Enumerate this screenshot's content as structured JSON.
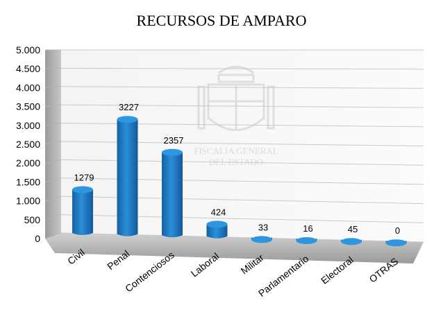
{
  "chart_data": {
    "type": "bar",
    "title": "RECURSOS DE AMPARO",
    "categories": [
      "Civil",
      "Penal",
      "Contenciosos",
      "Laboral",
      "Militar",
      "Parlamentario",
      "Electoral",
      "OTRAS"
    ],
    "values": [
      1279,
      3227,
      2357,
      424,
      33,
      16,
      45,
      0
    ],
    "data_labels": [
      "1279",
      "3227",
      "2357",
      "424",
      "33",
      "16",
      "45",
      "0"
    ],
    "ylim": [
      0,
      5000
    ],
    "yticks": [
      0,
      500,
      1000,
      1500,
      2000,
      2500,
      3000,
      3500,
      4000,
      4500,
      5000
    ],
    "ytick_labels": [
      "0",
      "500",
      "1.000",
      "1.500",
      "2.000",
      "2.500",
      "3.000",
      "3.500",
      "4.000",
      "4.500",
      "5.000"
    ],
    "grid": true,
    "bar_color": "#1f7fc6",
    "watermark": {
      "line1": "FISCALIA GENERAL",
      "line2": "DEL ESTADO"
    }
  }
}
